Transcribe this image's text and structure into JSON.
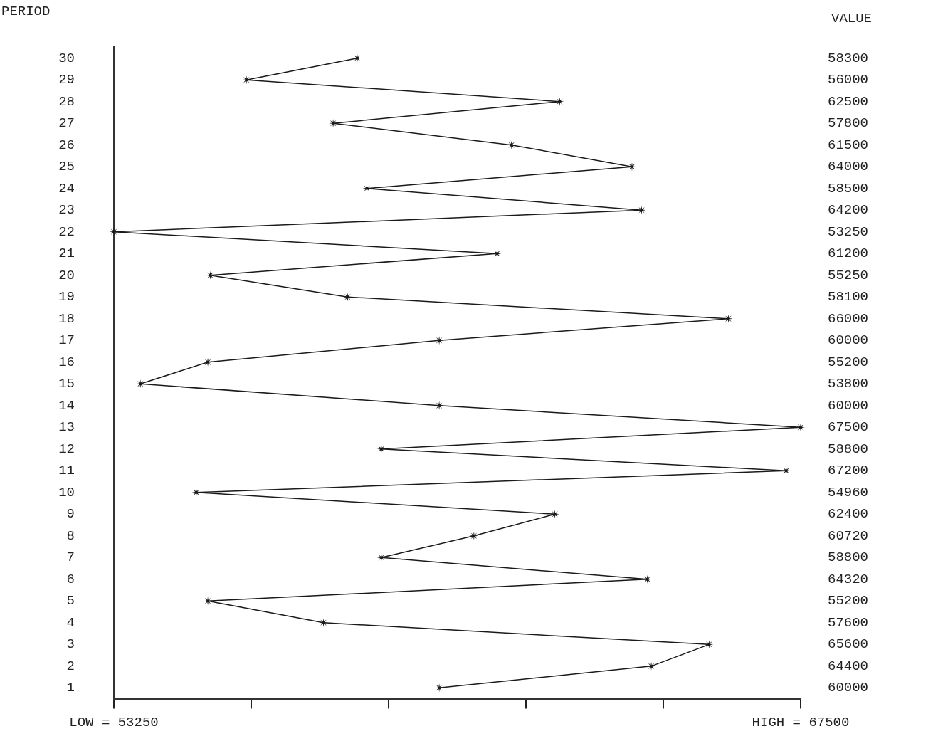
{
  "chart_data": {
    "type": "line",
    "orientation": "horizontal",
    "ylabel": "PERIOD",
    "annotations": [
      "VALUE"
    ],
    "categories": [
      "30",
      "29",
      "28",
      "27",
      "26",
      "25",
      "24",
      "23",
      "22",
      "21",
      "20",
      "19",
      "18",
      "17",
      "16",
      "15",
      "14",
      "13",
      "12",
      "11",
      "10",
      "9",
      "8",
      "7",
      "6",
      "5",
      "4",
      "3",
      "2",
      "1"
    ],
    "values": [
      58300,
      56000,
      62500,
      57800,
      61500,
      64000,
      58500,
      64200,
      53250,
      61200,
      55250,
      58100,
      66000,
      60000,
      55200,
      53800,
      60000,
      67500,
      58800,
      67200,
      54960,
      62400,
      60720,
      58800,
      64320,
      55200,
      57600,
      65600,
      64400,
      60000
    ],
    "color": "#1a1a1a",
    "marker": "star",
    "line_style": "solid",
    "data_labels": true,
    "grid": false,
    "legend": false,
    "xlim": [
      53250,
      67500
    ],
    "xticks": [
      {
        "value": 53250,
        "label": "LOW = 53250"
      },
      {
        "value": 56100,
        "label": null
      },
      {
        "value": 58950,
        "label": null
      },
      {
        "value": 61800,
        "label": null
      },
      {
        "value": 64650,
        "label": null
      },
      {
        "value": 67500,
        "label": "HIGH = 67500"
      }
    ]
  }
}
